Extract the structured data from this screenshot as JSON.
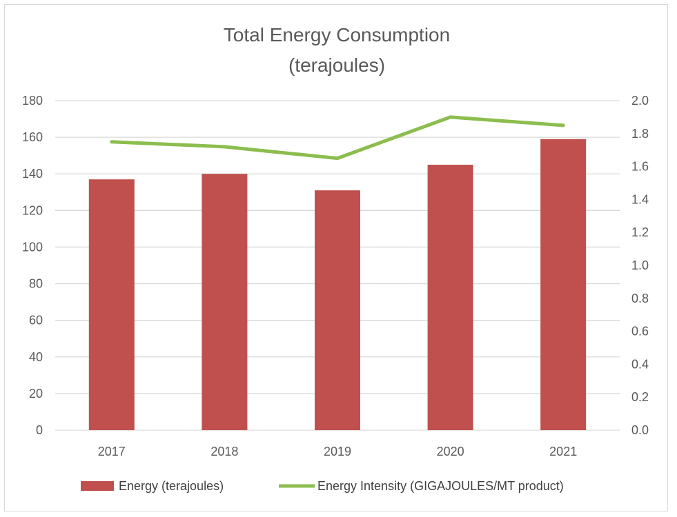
{
  "chart_data": {
    "type": "bar",
    "title_lines": [
      "Total Energy Consumption",
      "(terajoules)"
    ],
    "categories": [
      "2017",
      "2018",
      "2019",
      "2020",
      "2021"
    ],
    "series": [
      {
        "name": "Energy (terajoules)",
        "kind": "bar",
        "axis": "left",
        "color": "#c0504d",
        "values": [
          137,
          140,
          131,
          145,
          159
        ]
      },
      {
        "name": "Energy Intensity (GIGAJOULES/MT product)",
        "kind": "line",
        "axis": "right",
        "color": "#8cbd4e",
        "values": [
          1.75,
          1.72,
          1.65,
          1.9,
          1.85
        ]
      }
    ],
    "y_left": {
      "min": 0,
      "max": 180,
      "step": 20,
      "ticks": [
        "0",
        "20",
        "40",
        "60",
        "80",
        "100",
        "120",
        "140",
        "160",
        "180"
      ]
    },
    "y_right": {
      "min": 0,
      "max": 2.0,
      "step": 0.2,
      "ticks": [
        "0.0",
        "0.2",
        "0.4",
        "0.6",
        "0.8",
        "1.0",
        "1.2",
        "1.4",
        "1.6",
        "1.8",
        "2.0"
      ]
    },
    "grid": true,
    "legend_position": "bottom",
    "gridline_color": "#d9d9d9",
    "text_color": "#595959"
  }
}
